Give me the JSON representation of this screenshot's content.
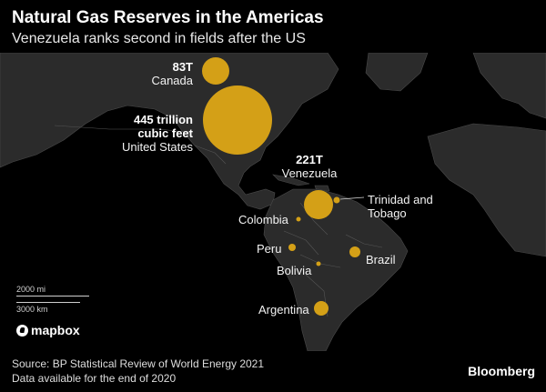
{
  "header": {
    "title": "Natural Gas Reserves in the Americas",
    "subtitle": "Venezuela ranks second in fields after the US"
  },
  "map": {
    "style": "dark",
    "land_color": "#2b2b2b",
    "water_color": "#000000",
    "bubble_color": "#d4a017",
    "countries": [
      {
        "value": "83T",
        "name": "Canada",
        "reserves_tcf": 83
      },
      {
        "value": "445 trillion cubic feet",
        "name": "United States",
        "reserves_tcf": 445
      },
      {
        "value": "221T",
        "name": "Venezuela",
        "reserves_tcf": 221
      },
      {
        "value": "",
        "name": "Trinidad and Tobago"
      },
      {
        "value": "",
        "name": "Colombia"
      },
      {
        "value": "",
        "name": "Peru"
      },
      {
        "value": "",
        "name": "Brazil"
      },
      {
        "value": "",
        "name": "Bolivia"
      },
      {
        "value": "",
        "name": "Argentina"
      }
    ],
    "scale": {
      "imperial": "2000 mi",
      "metric": "3000 km"
    },
    "attribution": "mapbox"
  },
  "footer": {
    "source": "Source: BP Statistical Review of World Energy 2021",
    "note": "Data available for the end of 2020",
    "brand": "Bloomberg"
  }
}
